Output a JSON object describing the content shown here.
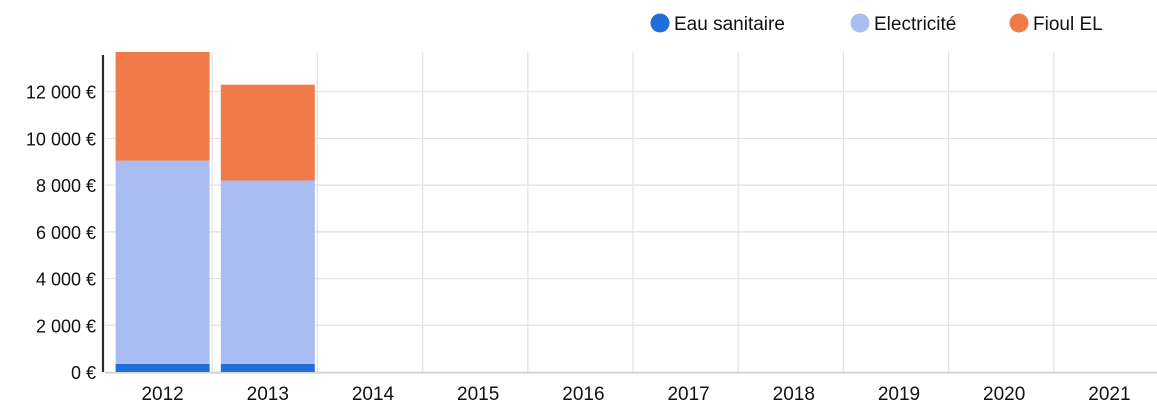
{
  "chart_data": {
    "type": "bar",
    "stacked": true,
    "categories": [
      "2012",
      "2013",
      "2014",
      "2015",
      "2016",
      "2017",
      "2018",
      "2019",
      "2020",
      "2021"
    ],
    "series": [
      {
        "name": "Eau sanitaire",
        "color": "#1f6fd6",
        "values": [
          350,
          350,
          0,
          0,
          0,
          0,
          0,
          0,
          0,
          0
        ]
      },
      {
        "name": "Electricité",
        "color": "#aabdf2",
        "values": [
          8700,
          7850,
          0,
          0,
          0,
          0,
          0,
          0,
          0,
          0
        ]
      },
      {
        "name": "Fioul EL",
        "color": "#f07a48",
        "values": [
          4650,
          4100,
          0,
          0,
          0,
          0,
          0,
          0,
          0,
          0
        ]
      }
    ],
    "yticks": [
      0,
      2000,
      4000,
      6000,
      8000,
      10000,
      12000
    ],
    "ytick_labels": [
      "0 €",
      "2 000 €",
      "4 000 €",
      "6 000 €",
      "8 000 €",
      "10 000 €",
      "12 000 €"
    ],
    "ylim": [
      0,
      13700
    ],
    "grid": true,
    "legend": "top-right",
    "title": "",
    "xlabel": "",
    "ylabel": ""
  }
}
